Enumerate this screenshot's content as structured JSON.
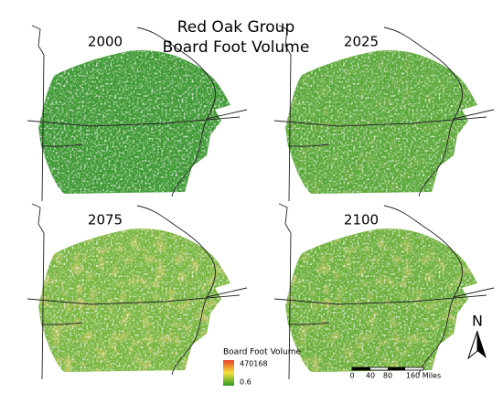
{
  "title": [
    "Red Oak Group",
    "Board Foot Volume"
  ],
  "panels": [
    {
      "label": "2000"
    },
    {
      "label": "2025"
    },
    {
      "label": "2075"
    },
    {
      "label": "2100"
    }
  ],
  "legend": {
    "title": "Board Foot Volume",
    "max": 470168,
    "min": 0.6
  },
  "scale_bar": {
    "labels": [
      "0",
      "40",
      "80",
      "160 Miles"
    ]
  },
  "north_arrow": "N"
}
